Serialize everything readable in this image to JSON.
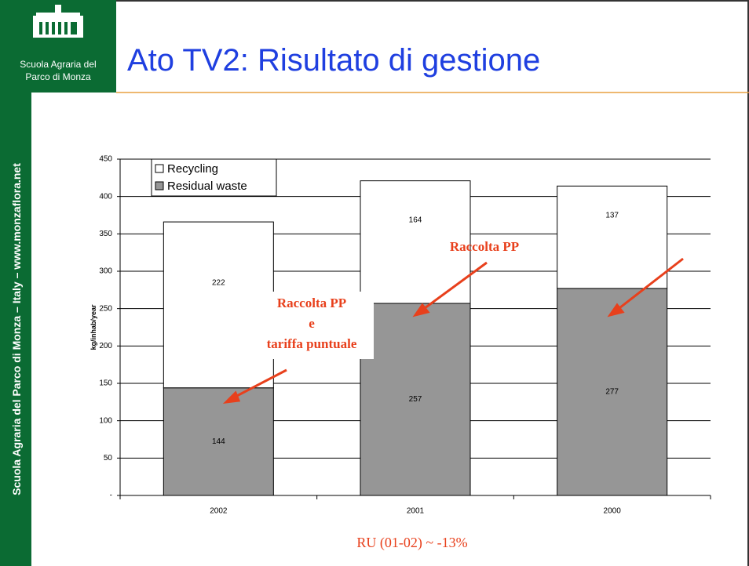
{
  "sidebar": {
    "logo_line1": "Scuola Agraria del",
    "logo_line2": "Parco di Monza",
    "vertical_text": "Scuola Agraria del Parco di Monza – Italy – www.monzaflora.net"
  },
  "title": "Ato TV2: Risultato di gestione",
  "chart_data": {
    "type": "stacked_bar",
    "ylabel": "kg/inhab/year",
    "categories": [
      "2002",
      "2001",
      "2000"
    ],
    "series": [
      {
        "name": "Recycling",
        "color": "#ffffff",
        "values": [
          222,
          164,
          137
        ]
      },
      {
        "name": "Residual waste",
        "color": "#969696",
        "values": [
          144,
          257,
          277
        ]
      }
    ],
    "ylim": [
      0,
      450
    ],
    "yticks": [
      {
        "value": 0,
        "label": "-"
      },
      50,
      100,
      150,
      200,
      250,
      300,
      350,
      400,
      450
    ],
    "grid": true,
    "legend": "upper left",
    "annotations": [
      "Raccolta PP",
      "e",
      "tariffa puntuale",
      "Raccolta PP"
    ],
    "note": "RU (01-02) ~ -13%"
  }
}
